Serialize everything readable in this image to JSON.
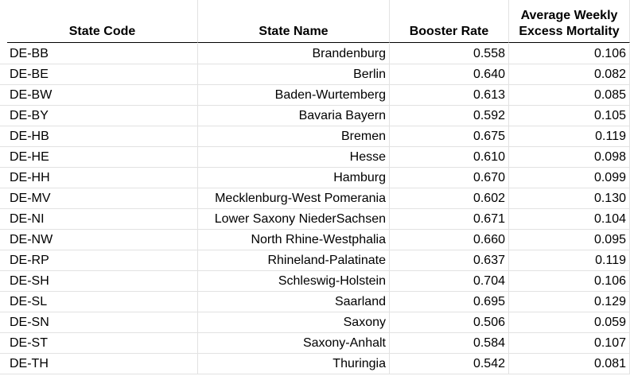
{
  "columns": {
    "state_code": "State Code",
    "state_name": "State Name",
    "booster_rate": "Booster Rate",
    "excess_mortality": "Average Weekly Excess Mortality"
  },
  "rows": [
    {
      "code": "DE-BB",
      "name": "Brandenburg",
      "booster": "0.558",
      "mortality": "0.106"
    },
    {
      "code": "DE-BE",
      "name": "Berlin",
      "booster": "0.640",
      "mortality": "0.082"
    },
    {
      "code": "DE-BW",
      "name": "Baden-Wurtemberg",
      "booster": "0.613",
      "mortality": "0.085"
    },
    {
      "code": "DE-BY",
      "name": "Bavaria Bayern",
      "booster": "0.592",
      "mortality": "0.105"
    },
    {
      "code": "DE-HB",
      "name": "Bremen",
      "booster": "0.675",
      "mortality": "0.119"
    },
    {
      "code": "DE-HE",
      "name": "Hesse",
      "booster": "0.610",
      "mortality": "0.098"
    },
    {
      "code": "DE-HH",
      "name": "Hamburg",
      "booster": "0.670",
      "mortality": "0.099"
    },
    {
      "code": "DE-MV",
      "name": "Mecklenburg-West Pomerania",
      "booster": "0.602",
      "mortality": "0.130"
    },
    {
      "code": "DE-NI",
      "name": "Lower Saxony NiederSachsen",
      "booster": "0.671",
      "mortality": "0.104"
    },
    {
      "code": "DE-NW",
      "name": "North Rhine-Westphalia",
      "booster": "0.660",
      "mortality": "0.095"
    },
    {
      "code": "DE-RP",
      "name": "Rhineland-Palatinate",
      "booster": "0.637",
      "mortality": "0.119"
    },
    {
      "code": "DE-SH",
      "name": "Schleswig-Holstein",
      "booster": "0.704",
      "mortality": "0.106"
    },
    {
      "code": "DE-SL",
      "name": "Saarland",
      "booster": "0.695",
      "mortality": "0.129"
    },
    {
      "code": "DE-SN",
      "name": "Saxony",
      "booster": "0.506",
      "mortality": "0.059"
    },
    {
      "code": "DE-ST",
      "name": "Saxony-Anhalt",
      "booster": "0.584",
      "mortality": "0.107"
    },
    {
      "code": "DE-TH",
      "name": "Thuringia",
      "booster": "0.542",
      "mortality": "0.081"
    }
  ]
}
